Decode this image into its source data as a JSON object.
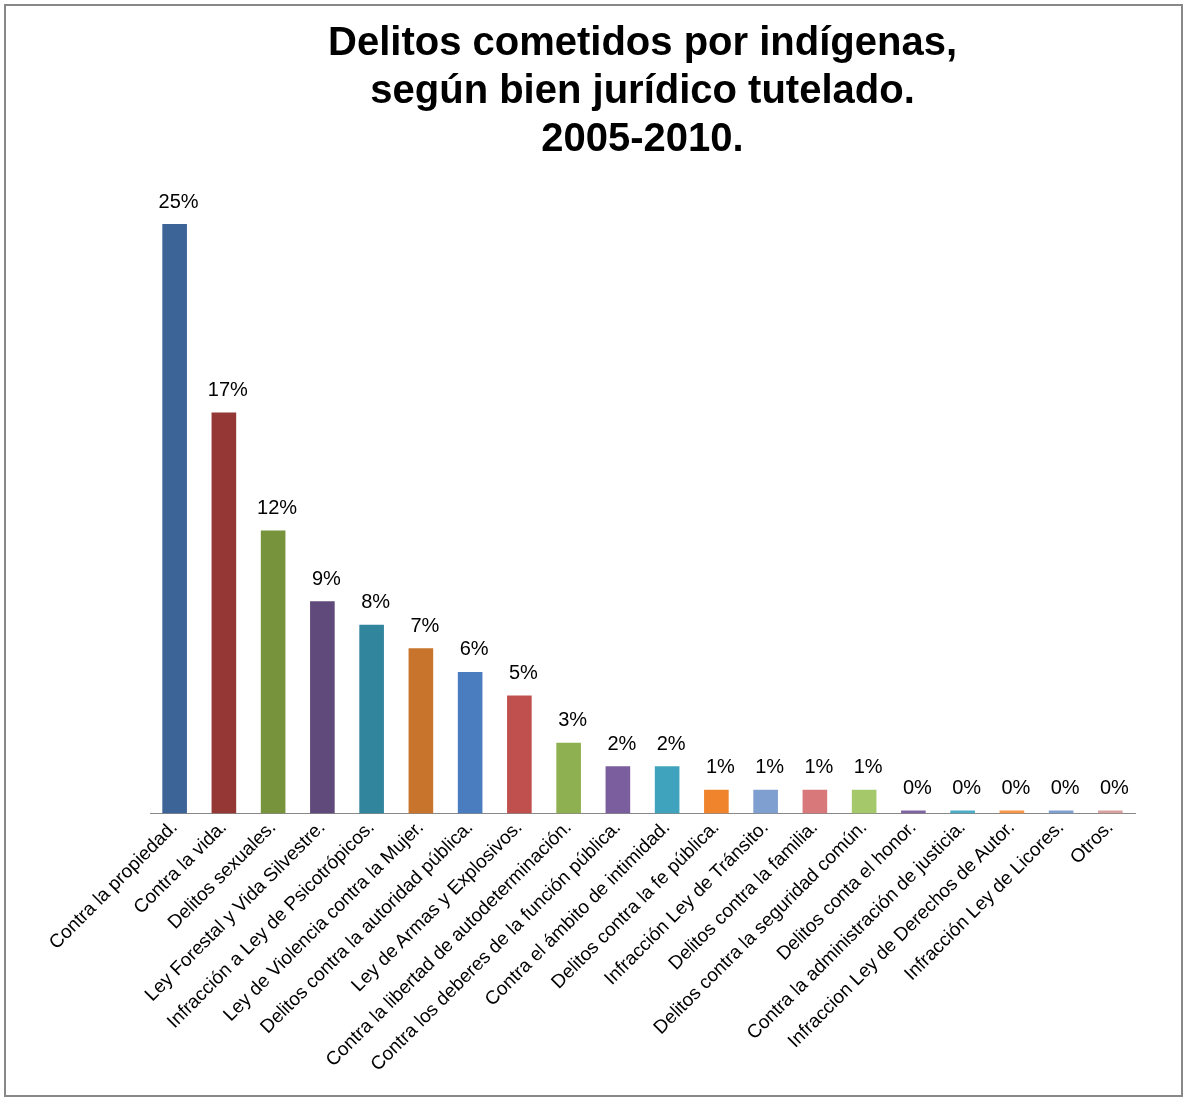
{
  "chart_data": {
    "type": "bar",
    "title": "Delitos cometidos por indígenas,\nsegún bien jurídico tutelado.\n2005-2010.",
    "categories": [
      "Contra la propiedad.",
      "Contra la vida.",
      "Delitos sexuales.",
      "Ley Forestal y Vida Silvestre.",
      "Infracción a Ley de Psicotrópicos.",
      "Ley de Violencia contra la Mujer.",
      "Delitos contra la autoridad pública.",
      "Ley de Armas y Explosivos.",
      "Contra la libertad de autodeterminación.",
      "Contra los deberes de la función pública.",
      "Contra el ámbito de intimidad.",
      "Delitos contra la fe pública.",
      "Infracción Ley de Tránsito.",
      "Delitos contra la familia.",
      "Delitos contra la seguridad común.",
      "Delitos conta el honor.",
      "Contra la administración de justicia.",
      "Infraccion Ley de Derechos de Autor.",
      "Infracción Ley de Licores.",
      "Otros."
    ],
    "values": [
      25,
      17,
      12,
      9,
      8,
      7,
      6,
      5,
      3,
      2,
      2,
      1,
      1,
      1,
      1,
      0,
      0,
      0,
      0,
      0
    ],
    "value_labels": [
      "25%",
      "17%",
      "12%",
      "9%",
      "8%",
      "7%",
      "6%",
      "5%",
      "3%",
      "2%",
      "2%",
      "1%",
      "1%",
      "1%",
      "1%",
      "0%",
      "0%",
      "0%",
      "0%",
      "0%"
    ],
    "colors": [
      "#3c6496",
      "#953735",
      "#77933c",
      "#604a7b",
      "#31859c",
      "#c8742c",
      "#4a7cc0",
      "#c0504d",
      "#8fb050",
      "#7a5e9e",
      "#3fa3bd",
      "#f0842c",
      "#7f9fd0",
      "#d9787a",
      "#a5c86a",
      "#8064a2",
      "#4bacc6",
      "#f79646",
      "#7f9fd0",
      "#d9a0a0"
    ],
    "grid": false,
    "legend": false
  }
}
